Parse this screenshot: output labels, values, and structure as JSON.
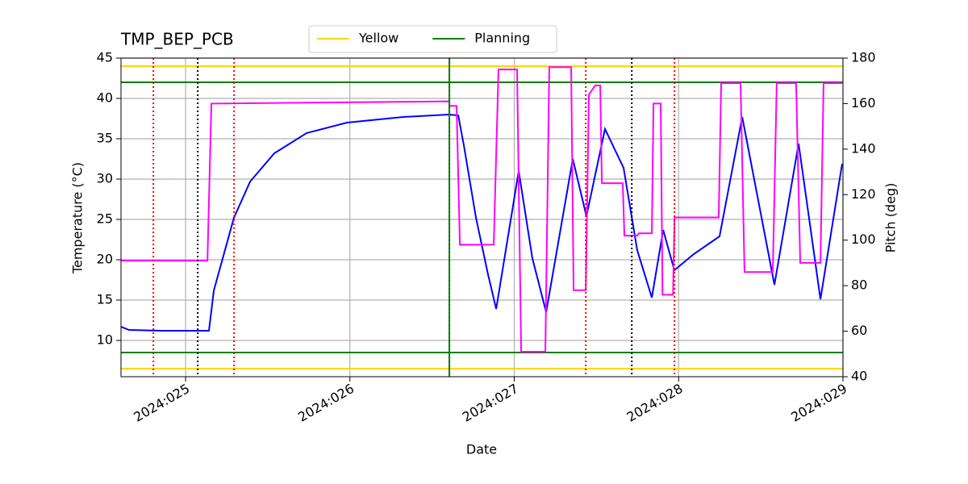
{
  "chart_data": {
    "type": "line",
    "title": "TMP_BEP_PCB",
    "xlabel": "Date",
    "ylabel": "Temperature (°C)",
    "y2label": "Pitch (deg)",
    "xlim": [
      24.607,
      29
    ],
    "xticks": [
      {
        "value": 25,
        "label": "2024:025"
      },
      {
        "value": 26,
        "label": "2024:026"
      },
      {
        "value": 27,
        "label": "2024:027"
      },
      {
        "value": 28,
        "label": "2024:028"
      },
      {
        "value": 29,
        "label": "2024:029"
      }
    ],
    "ylim": [
      5.5,
      45
    ],
    "yticks": [
      10,
      15,
      20,
      25,
      30,
      35,
      40,
      45
    ],
    "y2lim": [
      40,
      180
    ],
    "y2ticks": [
      40,
      60,
      80,
      100,
      120,
      140,
      160,
      180
    ],
    "y2color": "#ff00ff",
    "grid": true,
    "legend": "upper center",
    "series": [
      {
        "color": "#0000ff",
        "axis": "y",
        "x": [
          24.607,
          24.656,
          24.853,
          25.142,
          25.172,
          25.294,
          25.393,
          25.54,
          25.736,
          25.982,
          26.325,
          26.6,
          26.659,
          26.693,
          26.767,
          26.84,
          26.89,
          27.027,
          27.11,
          27.194,
          27.356,
          27.439,
          27.552,
          27.665,
          27.748,
          27.837,
          27.906,
          27.974,
          28.092,
          28.249,
          28.387,
          28.583,
          28.73,
          28.863,
          28.995
        ],
        "values": [
          11.7,
          11.3,
          11.2,
          11.2,
          16.2,
          25.2,
          29.7,
          33.2,
          35.7,
          37.0,
          37.7,
          38.0,
          37.9,
          34.2,
          25.2,
          18.2,
          13.9,
          31.0,
          20.2,
          13.5,
          32.5,
          25.4,
          36.2,
          31.4,
          21.2,
          15.3,
          23.7,
          18.7,
          20.7,
          22.9,
          37.7,
          16.9,
          34.4,
          15.1,
          31.9
        ]
      },
      {
        "color": "#ff00ff",
        "axis": "y2",
        "x": [
          24.607,
          25.133,
          25.157,
          26.605,
          26.605,
          26.649,
          26.669,
          26.875,
          26.904,
          27.017,
          27.042,
          27.189,
          27.213,
          27.346,
          27.361,
          27.435,
          27.454,
          27.493,
          27.523,
          27.533,
          27.66,
          27.67,
          27.749,
          27.758,
          27.837,
          27.847,
          27.891,
          27.902,
          27.966,
          27.975,
          28.244,
          28.259,
          28.377,
          28.401,
          28.573,
          28.597,
          28.715,
          28.74,
          28.863,
          28.882,
          28.995
        ],
        "values": [
          91,
          91,
          160,
          161,
          159,
          159,
          98,
          98,
          175,
          175,
          51,
          51,
          176,
          176,
          78,
          78,
          164,
          168,
          168,
          125,
          125,
          102,
          102,
          103,
          103,
          160,
          160,
          76,
          76,
          110,
          110,
          169,
          169,
          86,
          86,
          169,
          169,
          90,
          90,
          169,
          169
        ]
      }
    ],
    "limits": [
      {
        "name": "Yellow",
        "color": "#ffd700",
        "values": [
          44,
          6.5
        ]
      },
      {
        "name": "Planning",
        "color": "#008000",
        "values": [
          42,
          8.5
        ]
      }
    ],
    "vlines": [
      {
        "x": 24.804,
        "color": "#ff0000",
        "style": "dotted"
      },
      {
        "x": 25.074,
        "color": "#000000",
        "style": "dotted"
      },
      {
        "x": 25.295,
        "color": "#ff0000",
        "style": "dotted"
      },
      {
        "x": 26.605,
        "color": "#8b0000",
        "style": "dotted"
      },
      {
        "x": 26.605,
        "color": "#008000",
        "style": "solid"
      },
      {
        "x": 27.435,
        "color": "#ff0000",
        "style": "dotted"
      },
      {
        "x": 27.715,
        "color": "#000000",
        "style": "dotted"
      },
      {
        "x": 27.975,
        "color": "#ff0000",
        "style": "dotted"
      }
    ]
  }
}
